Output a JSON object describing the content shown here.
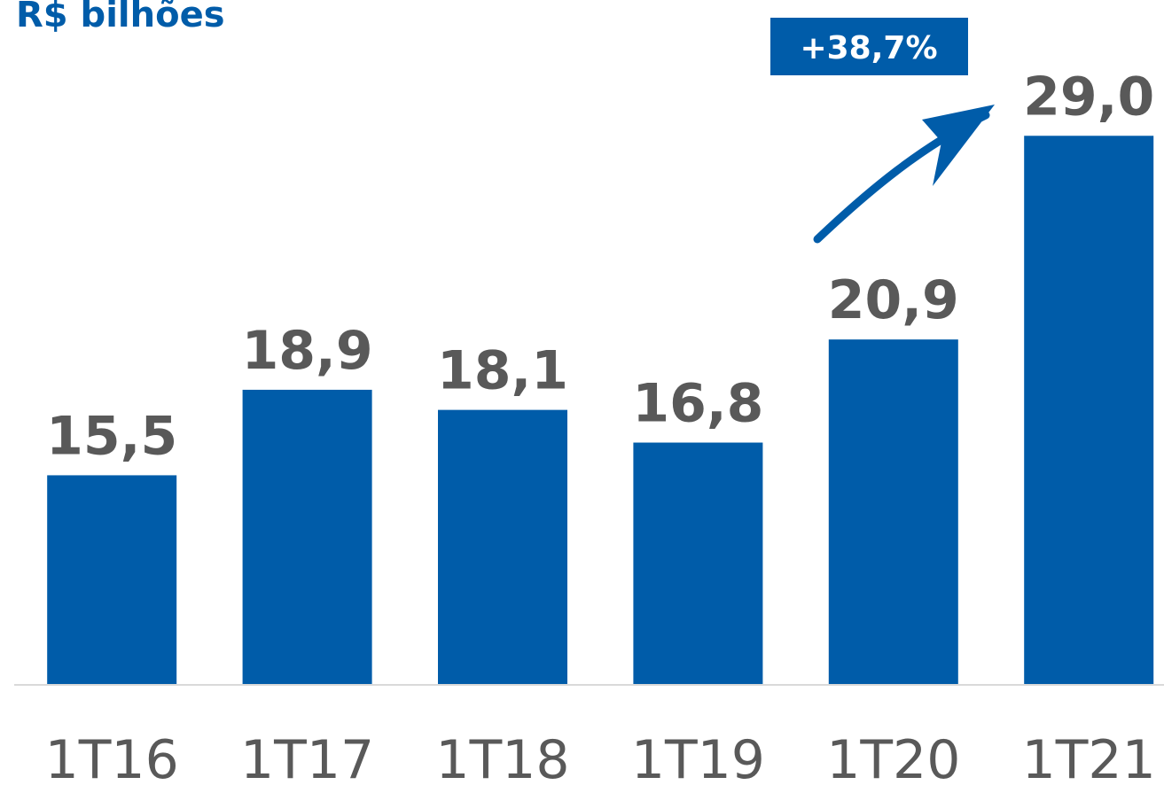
{
  "chart_data": {
    "type": "bar",
    "title": "R$ bilhões",
    "categories": [
      "1T16",
      "1T17",
      "1T18",
      "1T19",
      "1T20",
      "1T21"
    ],
    "values": [
      15.5,
      18.9,
      18.1,
      16.8,
      20.9,
      29.0
    ],
    "value_labels": [
      "15,5",
      "18,9",
      "18,1",
      "16,8",
      "20,9",
      "29,0"
    ],
    "color": "#005ca9",
    "ylim": [
      7.2,
      34.4
    ],
    "annotation": "+38,7%"
  }
}
